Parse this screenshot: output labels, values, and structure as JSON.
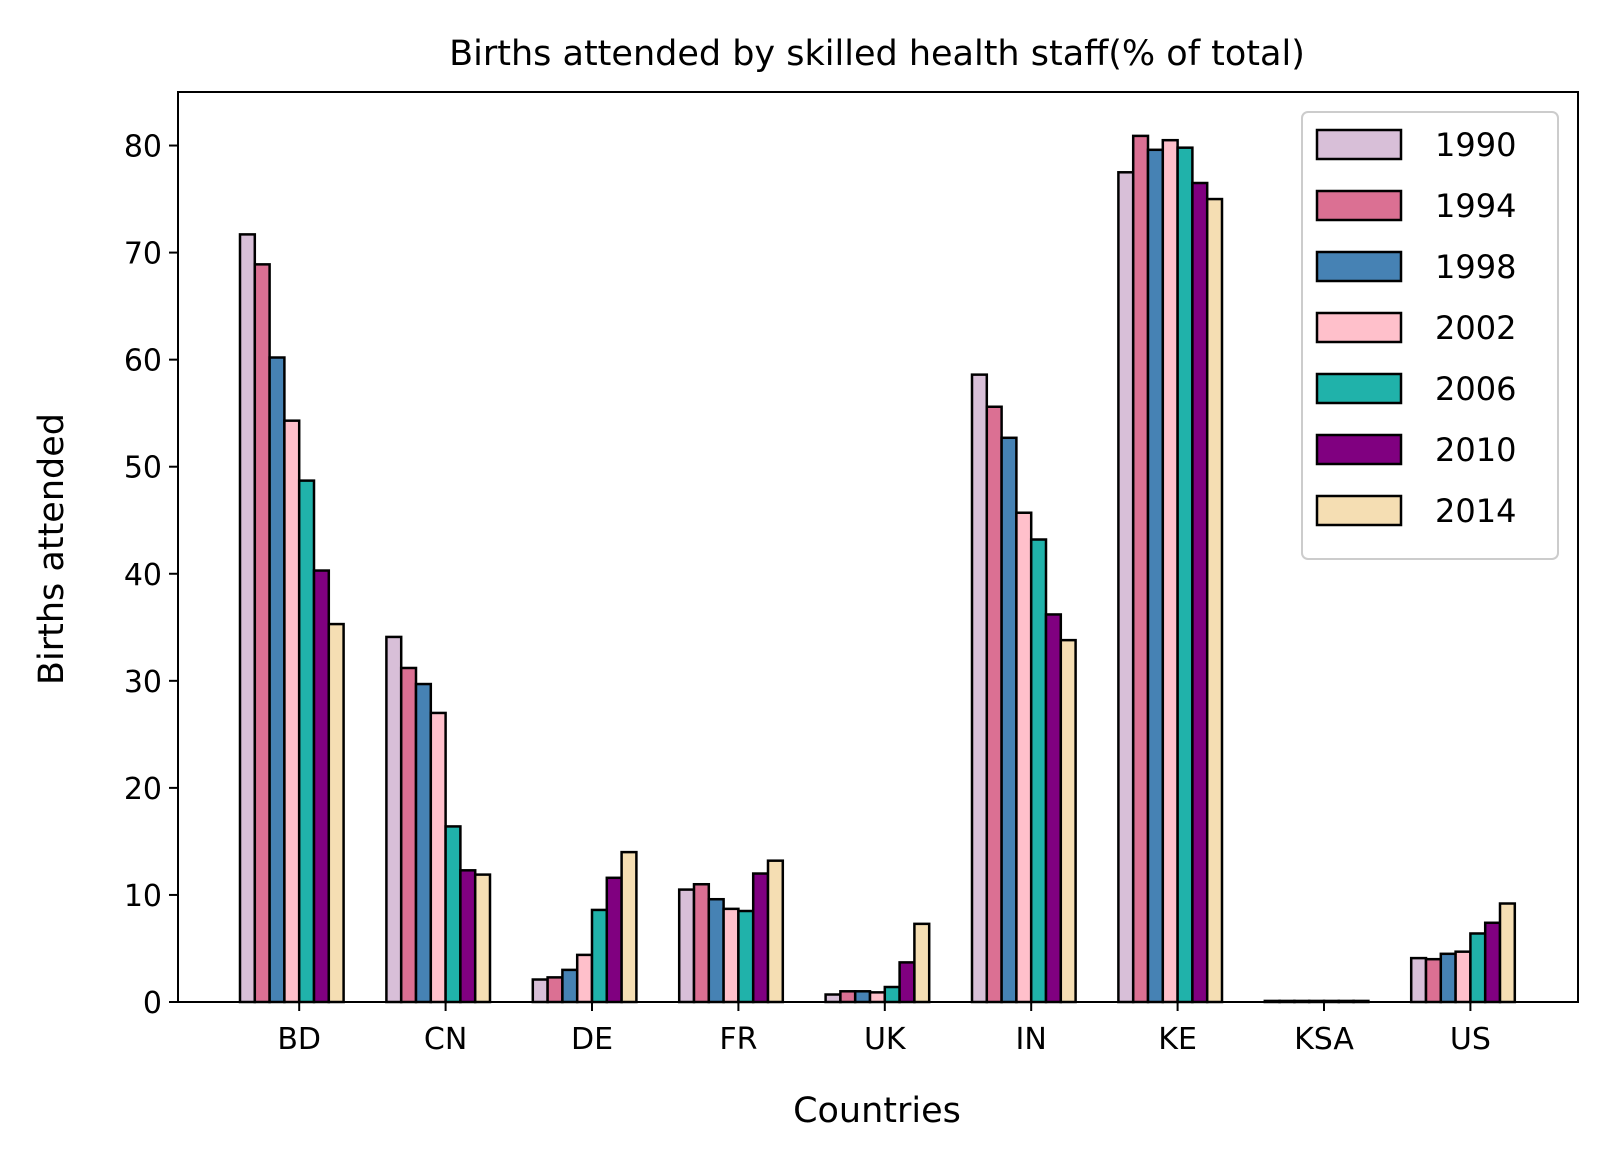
{
  "chart_data": {
    "type": "bar",
    "title": "Births attended by skilled health staff(% of total)",
    "xlabel": "Countries",
    "ylabel": "Births attended",
    "ylim": [
      0,
      85
    ],
    "yticks": [
      0,
      10,
      20,
      30,
      40,
      50,
      60,
      70,
      80
    ],
    "grid": false,
    "legend_position": "top-right",
    "categories": [
      "BD",
      "CN",
      "DE",
      "FR",
      "UK",
      "IN",
      "KE",
      "KSA",
      "US"
    ],
    "series": [
      {
        "name": "1990",
        "color": "#d8bfd8",
        "values": [
          71.7,
          34.1,
          2.1,
          10.5,
          0.7,
          58.6,
          77.5,
          0.1,
          4.1
        ]
      },
      {
        "name": "1994",
        "color": "#db7093",
        "values": [
          68.9,
          31.2,
          2.3,
          11.0,
          1.0,
          55.6,
          80.9,
          0.1,
          4.0
        ]
      },
      {
        "name": "1998",
        "color": "#4682b4",
        "values": [
          60.2,
          29.7,
          3.0,
          9.6,
          1.0,
          52.7,
          79.6,
          0.1,
          4.5
        ]
      },
      {
        "name": "2002",
        "color": "#ffc0cb",
        "values": [
          54.3,
          27.0,
          4.4,
          8.7,
          0.9,
          45.7,
          80.5,
          0.1,
          4.7
        ]
      },
      {
        "name": "2006",
        "color": "#20b2aa",
        "values": [
          48.7,
          16.4,
          8.6,
          8.5,
          1.4,
          43.2,
          79.8,
          0.1,
          6.4
        ]
      },
      {
        "name": "2010",
        "color": "#800080",
        "values": [
          40.3,
          12.3,
          11.6,
          12.0,
          3.7,
          36.2,
          76.5,
          0.1,
          7.4
        ]
      },
      {
        "name": "2014",
        "color": "#f5deb3",
        "values": [
          35.3,
          11.9,
          14.0,
          13.2,
          7.3,
          33.8,
          75.0,
          0.1,
          9.2
        ]
      }
    ]
  }
}
